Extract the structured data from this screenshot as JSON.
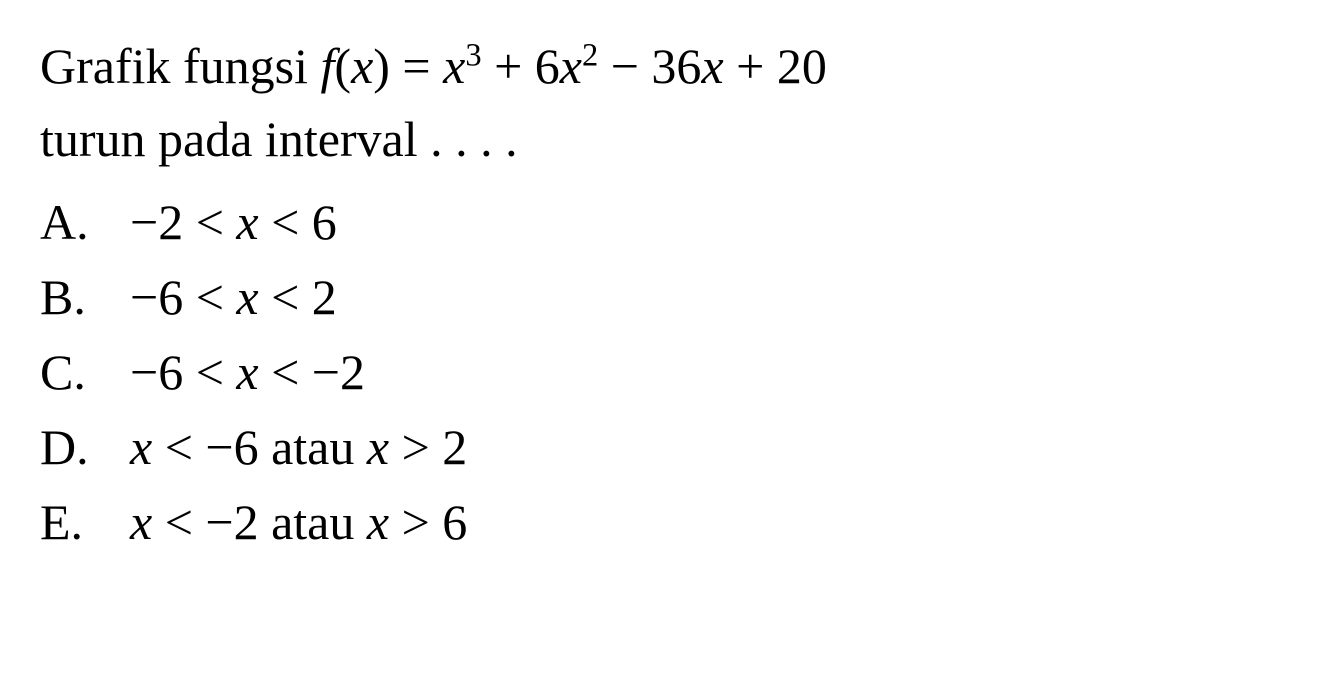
{
  "question": {
    "prefix_text": "Grafik fungsi ",
    "func_name": "f",
    "func_open": "(",
    "var": "x",
    "func_close": ") = ",
    "term1_var": "x",
    "term1_exp": "3",
    "term1_after": " + 6",
    "term2_var": "x",
    "term2_exp": "2",
    "term2_after": " − 36",
    "term3_var": "x",
    "term3_after": " + 20",
    "line2": "turun pada interval . . . ."
  },
  "options": {
    "a": {
      "label": "A.",
      "p1": "−2 < ",
      "var": "x",
      "p2": " < 6"
    },
    "b": {
      "label": "B.",
      "p1": "−6 < ",
      "var": "x",
      "p2": " < 2"
    },
    "c": {
      "label": "C.",
      "p1": "−6 < ",
      "var": "x",
      "p2": " < −2"
    },
    "d": {
      "label": "D.",
      "var1": "x",
      "p1": " < −6 atau ",
      "var2": "x",
      "p2": " > 2"
    },
    "e": {
      "label": "E.",
      "var1": "x",
      "p1": " < −2 atau ",
      "var2": "x",
      "p2": " > 6"
    }
  },
  "style": {
    "font_size_pt": 50,
    "text_color": "#000000",
    "background_color": "#ffffff",
    "font_family": "Times New Roman"
  }
}
